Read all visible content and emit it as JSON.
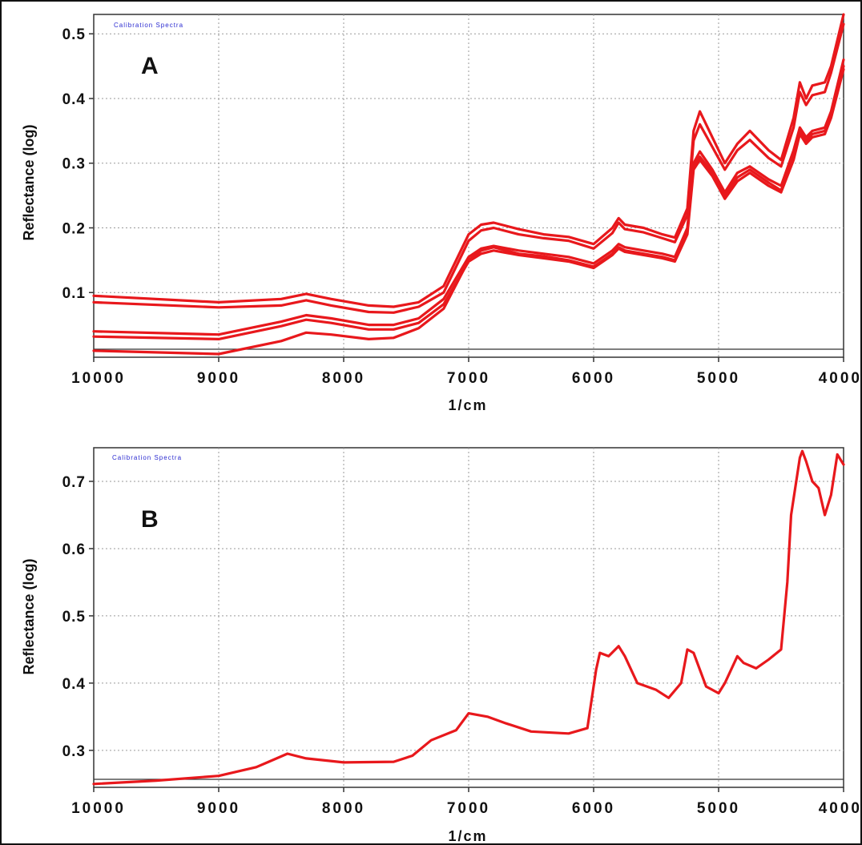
{
  "colors": {
    "series": "#e8181c",
    "grid": "#9a9a9a",
    "axis": "#333333",
    "caption": "#2a2ad0"
  },
  "chart_data": [
    {
      "type": "line",
      "panel_label": "A",
      "caption": "Calibration Spectra",
      "xlabel": "1/cm",
      "ylabel": "Reflectance (log)",
      "xlim": [
        10000,
        4000
      ],
      "x_reversed": true,
      "ylim": [
        0.0,
        0.53
      ],
      "x_ticks": [
        10000,
        9000,
        8000,
        7000,
        6000,
        5000,
        4000
      ],
      "y_ticks": [
        "0.1",
        "0.2",
        "0.3",
        "0.4",
        "0.5"
      ],
      "grid": true,
      "x": [
        10000,
        9000,
        8500,
        8300,
        8100,
        7800,
        7600,
        7400,
        7200,
        7000,
        6900,
        6800,
        6600,
        6400,
        6200,
        6000,
        5850,
        5800,
        5750,
        5600,
        5450,
        5350,
        5250,
        5200,
        5150,
        5050,
        4950,
        4850,
        4750,
        4600,
        4500,
        4400,
        4350,
        4300,
        4250,
        4150,
        4100,
        4000
      ],
      "series": [
        {
          "values": [
            0.095,
            0.085,
            0.09,
            0.098,
            0.09,
            0.08,
            0.078,
            0.085,
            0.11,
            0.19,
            0.205,
            0.208,
            0.198,
            0.19,
            0.186,
            0.175,
            0.2,
            0.215,
            0.205,
            0.2,
            0.19,
            0.185,
            0.23,
            0.35,
            0.38,
            0.34,
            0.3,
            0.33,
            0.35,
            0.32,
            0.305,
            0.37,
            0.425,
            0.4,
            0.42,
            0.425,
            0.45,
            0.53
          ]
        },
        {
          "values": [
            0.085,
            0.077,
            0.08,
            0.088,
            0.08,
            0.07,
            0.069,
            0.078,
            0.1,
            0.18,
            0.196,
            0.2,
            0.19,
            0.184,
            0.18,
            0.168,
            0.192,
            0.208,
            0.198,
            0.193,
            0.184,
            0.178,
            0.22,
            0.335,
            0.36,
            0.325,
            0.29,
            0.32,
            0.336,
            0.308,
            0.295,
            0.355,
            0.41,
            0.39,
            0.405,
            0.41,
            0.44,
            0.515
          ]
        },
        {
          "values": [
            0.04,
            0.035,
            0.055,
            0.065,
            0.06,
            0.05,
            0.05,
            0.06,
            0.09,
            0.155,
            0.168,
            0.172,
            0.165,
            0.16,
            0.155,
            0.145,
            0.165,
            0.175,
            0.17,
            0.165,
            0.16,
            0.155,
            0.2,
            0.3,
            0.318,
            0.29,
            0.255,
            0.285,
            0.295,
            0.275,
            0.265,
            0.32,
            0.355,
            0.34,
            0.35,
            0.355,
            0.38,
            0.46
          ]
        },
        {
          "values": [
            0.032,
            0.028,
            0.048,
            0.058,
            0.053,
            0.043,
            0.043,
            0.053,
            0.082,
            0.148,
            0.16,
            0.165,
            0.158,
            0.153,
            0.148,
            0.138,
            0.158,
            0.168,
            0.163,
            0.158,
            0.153,
            0.148,
            0.19,
            0.29,
            0.305,
            0.28,
            0.245,
            0.272,
            0.285,
            0.265,
            0.255,
            0.305,
            0.345,
            0.33,
            0.34,
            0.345,
            0.37,
            0.445
          ]
        },
        {
          "values": [
            0.01,
            0.005,
            0.025,
            0.038,
            0.035,
            0.028,
            0.03,
            0.045,
            0.075,
            0.15,
            0.165,
            0.17,
            0.16,
            0.156,
            0.15,
            0.14,
            0.16,
            0.17,
            0.165,
            0.16,
            0.155,
            0.15,
            0.195,
            0.295,
            0.31,
            0.285,
            0.25,
            0.278,
            0.29,
            0.27,
            0.258,
            0.31,
            0.35,
            0.335,
            0.345,
            0.35,
            0.375,
            0.45
          ]
        }
      ]
    },
    {
      "type": "line",
      "panel_label": "B",
      "caption": "Calibration Spectra",
      "xlabel": "1/cm",
      "ylabel": "Reflectance (log)",
      "xlim": [
        10000,
        4000
      ],
      "x_reversed": true,
      "ylim": [
        0.245,
        0.75
      ],
      "x_ticks": [
        10000,
        9000,
        8000,
        7000,
        6000,
        5000,
        4000
      ],
      "y_ticks": [
        "0.3",
        "0.4",
        "0.5",
        "0.6",
        "0.7"
      ],
      "grid": true,
      "x": [
        10000,
        9500,
        9000,
        8700,
        8600,
        8450,
        8300,
        8000,
        7600,
        7450,
        7300,
        7100,
        7000,
        6850,
        6700,
        6500,
        6200,
        6050,
        5980,
        5950,
        5880,
        5800,
        5750,
        5650,
        5500,
        5400,
        5300,
        5250,
        5200,
        5100,
        5000,
        4950,
        4850,
        4800,
        4700,
        4600,
        4500,
        4450,
        4420,
        4350,
        4330,
        4300,
        4250,
        4200,
        4150,
        4100,
        4050,
        4000
      ],
      "series": [
        {
          "values": [
            0.25,
            0.255,
            0.262,
            0.275,
            0.283,
            0.295,
            0.288,
            0.282,
            0.283,
            0.292,
            0.315,
            0.33,
            0.355,
            0.35,
            0.34,
            0.328,
            0.325,
            0.333,
            0.42,
            0.445,
            0.44,
            0.455,
            0.44,
            0.4,
            0.39,
            0.378,
            0.4,
            0.45,
            0.445,
            0.395,
            0.385,
            0.4,
            0.44,
            0.43,
            0.422,
            0.435,
            0.45,
            0.55,
            0.65,
            0.735,
            0.745,
            0.73,
            0.7,
            0.69,
            0.65,
            0.68,
            0.74,
            0.725
          ]
        }
      ]
    }
  ]
}
